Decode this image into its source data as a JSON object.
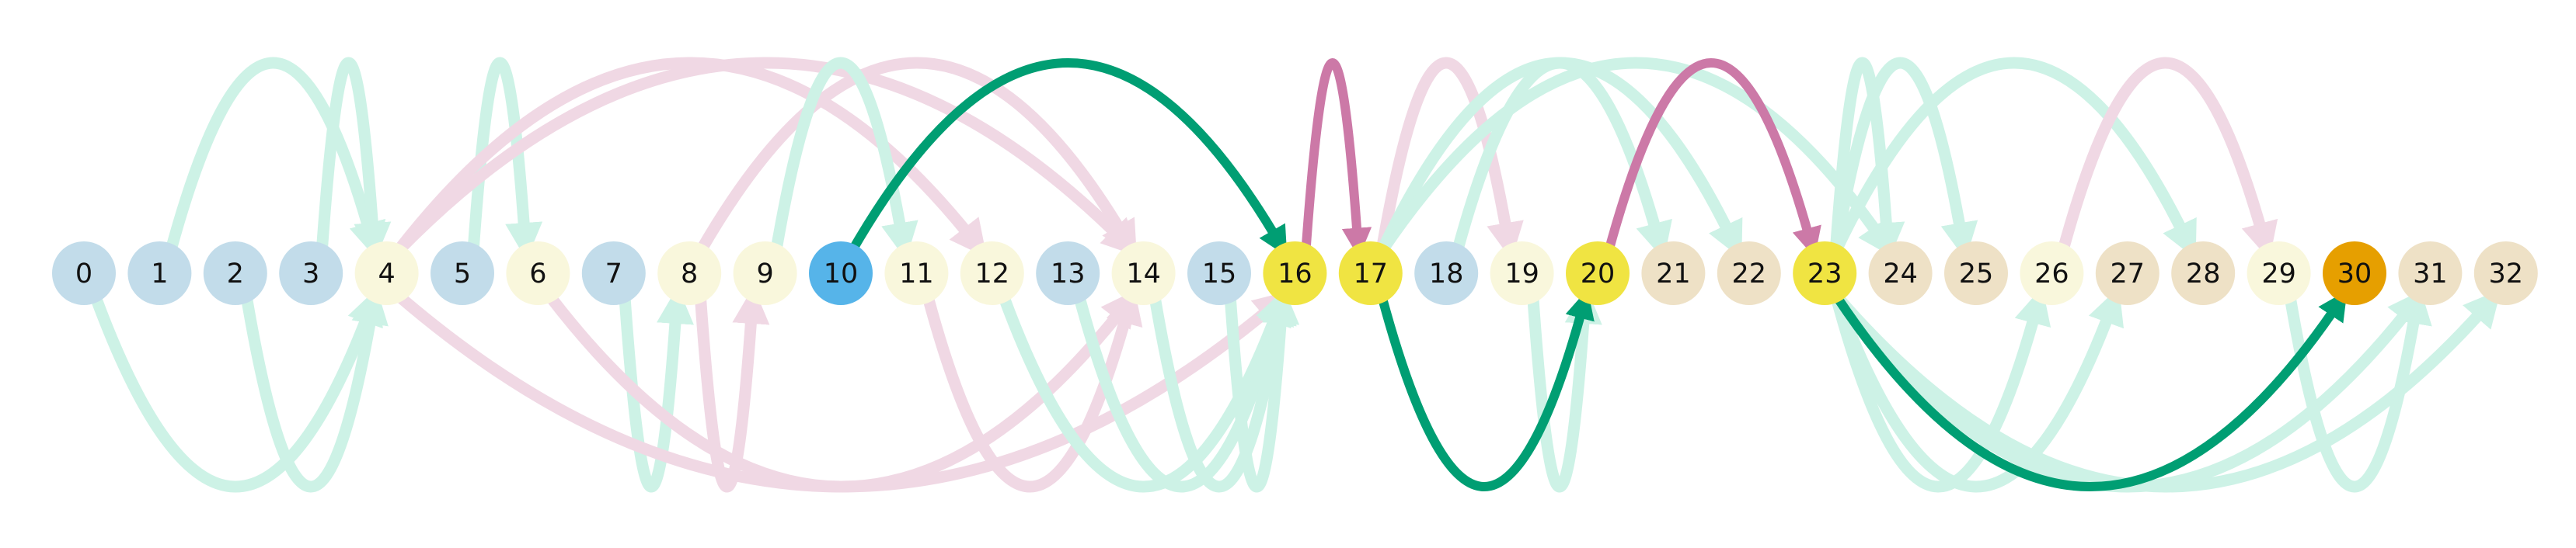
{
  "nodes": [
    {
      "id": "0",
      "color": "#c2dcea"
    },
    {
      "id": "1",
      "color": "#c2dcea"
    },
    {
      "id": "2",
      "color": "#c2dcea"
    },
    {
      "id": "3",
      "color": "#c2dcea"
    },
    {
      "id": "4",
      "color": "#f9f7dc"
    },
    {
      "id": "5",
      "color": "#c2dcea"
    },
    {
      "id": "6",
      "color": "#f9f7dc"
    },
    {
      "id": "7",
      "color": "#c2dcea"
    },
    {
      "id": "8",
      "color": "#f9f7dc"
    },
    {
      "id": "9",
      "color": "#f9f7dc"
    },
    {
      "id": "10",
      "color": "#56b4e9"
    },
    {
      "id": "11",
      "color": "#f9f7dc"
    },
    {
      "id": "12",
      "color": "#f9f7dc"
    },
    {
      "id": "13",
      "color": "#c2dcea"
    },
    {
      "id": "14",
      "color": "#f9f7dc"
    },
    {
      "id": "15",
      "color": "#c2dcea"
    },
    {
      "id": "16",
      "color": "#f0e442"
    },
    {
      "id": "17",
      "color": "#f0e442"
    },
    {
      "id": "18",
      "color": "#c2dcea"
    },
    {
      "id": "19",
      "color": "#f9f7dc"
    },
    {
      "id": "20",
      "color": "#f0e442"
    },
    {
      "id": "21",
      "color": "#eee1c6"
    },
    {
      "id": "22",
      "color": "#eee1c6"
    },
    {
      "id": "23",
      "color": "#f0e442"
    },
    {
      "id": "24",
      "color": "#eee1c6"
    },
    {
      "id": "25",
      "color": "#eee1c6"
    },
    {
      "id": "26",
      "color": "#f9f7dc"
    },
    {
      "id": "27",
      "color": "#eee1c6"
    },
    {
      "id": "28",
      "color": "#eee1c6"
    },
    {
      "id": "29",
      "color": "#f9f7dc"
    },
    {
      "id": "30",
      "color": "#e69f00"
    },
    {
      "id": "31",
      "color": "#eee1c6"
    },
    {
      "id": "32",
      "color": "#eee1c6"
    }
  ],
  "colors": {
    "faint_green": "#cdf2e6",
    "faint_pink": "#f0d8e4",
    "strong_green": "#009e73",
    "strong_pink": "#cc79a7"
  },
  "edges": [
    {
      "from": 1,
      "to": 4,
      "side": "above",
      "style": "faint_green"
    },
    {
      "from": 3,
      "to": 4,
      "side": "above",
      "style": "faint_green"
    },
    {
      "from": 5,
      "to": 6,
      "side": "above",
      "style": "faint_green"
    },
    {
      "from": 4,
      "to": 12,
      "side": "above",
      "style": "faint_pink"
    },
    {
      "from": 4,
      "to": 14,
      "side": "above",
      "style": "faint_pink"
    },
    {
      "from": 8,
      "to": 14,
      "side": "above",
      "style": "faint_pink"
    },
    {
      "from": 9,
      "to": 11,
      "side": "above",
      "style": "faint_green"
    },
    {
      "from": 10,
      "to": 16,
      "side": "above",
      "style": "strong_green"
    },
    {
      "from": 16,
      "to": 17,
      "side": "above",
      "style": "strong_pink"
    },
    {
      "from": 17,
      "to": 19,
      "side": "above",
      "style": "faint_pink"
    },
    {
      "from": 17,
      "to": 22,
      "side": "above",
      "style": "faint_green"
    },
    {
      "from": 17,
      "to": 24,
      "side": "above",
      "style": "faint_green"
    },
    {
      "from": 18,
      "to": 21,
      "side": "above",
      "style": "faint_green"
    },
    {
      "from": 20,
      "to": 23,
      "side": "above",
      "style": "strong_pink"
    },
    {
      "from": 23,
      "to": 24,
      "side": "above",
      "style": "faint_green"
    },
    {
      "from": 23,
      "to": 25,
      "side": "above",
      "style": "faint_green"
    },
    {
      "from": 23,
      "to": 28,
      "side": "above",
      "style": "faint_green"
    },
    {
      "from": 26,
      "to": 29,
      "side": "above",
      "style": "faint_pink"
    },
    {
      "from": 0,
      "to": 4,
      "side": "below",
      "style": "faint_green"
    },
    {
      "from": 2,
      "to": 4,
      "side": "below",
      "style": "faint_green"
    },
    {
      "from": 7,
      "to": 8,
      "side": "below",
      "style": "faint_green"
    },
    {
      "from": 4,
      "to": 16,
      "side": "below",
      "style": "faint_pink"
    },
    {
      "from": 6,
      "to": 14,
      "side": "below",
      "style": "faint_pink"
    },
    {
      "from": 8,
      "to": 9,
      "side": "below",
      "style": "faint_pink"
    },
    {
      "from": 11,
      "to": 14,
      "side": "below",
      "style": "faint_pink"
    },
    {
      "from": 12,
      "to": 16,
      "side": "below",
      "style": "faint_green"
    },
    {
      "from": 13,
      "to": 16,
      "side": "below",
      "style": "faint_green"
    },
    {
      "from": 14,
      "to": 16,
      "side": "below",
      "style": "faint_green"
    },
    {
      "from": 15,
      "to": 16,
      "side": "below",
      "style": "faint_green"
    },
    {
      "from": 17,
      "to": 20,
      "side": "below",
      "style": "strong_green"
    },
    {
      "from": 19,
      "to": 20,
      "side": "below",
      "style": "faint_green"
    },
    {
      "from": 23,
      "to": 26,
      "side": "below",
      "style": "faint_green"
    },
    {
      "from": 23,
      "to": 27,
      "side": "below",
      "style": "faint_green"
    },
    {
      "from": 23,
      "to": 30,
      "side": "below",
      "style": "strong_green"
    },
    {
      "from": 23,
      "to": 31,
      "side": "below",
      "style": "faint_green"
    },
    {
      "from": 23,
      "to": 32,
      "side": "below",
      "style": "faint_green"
    },
    {
      "from": 29,
      "to": 31,
      "side": "below",
      "style": "faint_green"
    }
  ]
}
